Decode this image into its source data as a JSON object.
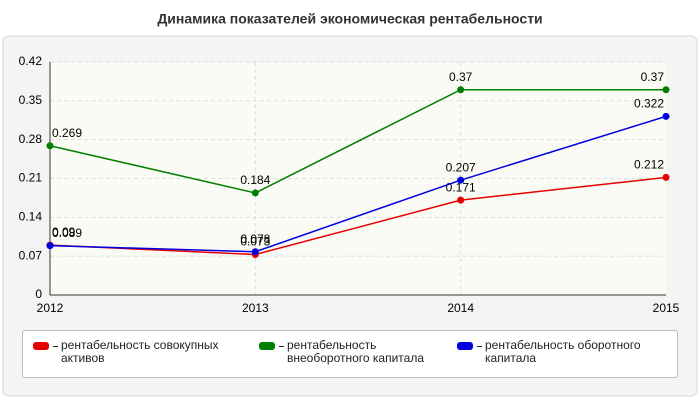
{
  "chart_data": {
    "type": "line",
    "title": "Динамика показателей экономическая рентабельности",
    "categories": [
      "2012",
      "2013",
      "2014",
      "2015"
    ],
    "series": [
      {
        "name": "рентабельность совокупных активов",
        "color": "#e60000",
        "values": [
          0.09,
          0.073,
          0.171,
          0.212
        ]
      },
      {
        "name": "рентабельность внеоборотного капитала",
        "color": "#008000",
        "values": [
          0.269,
          0.184,
          0.37,
          0.37
        ]
      },
      {
        "name": "рентабельность оборотного капитала",
        "color": "#0000e0",
        "values": [
          0.089,
          0.078,
          0.207,
          0.322
        ]
      }
    ],
    "ylim": [
      0,
      0.42
    ],
    "yticks": [
      0,
      0.07,
      0.14,
      0.21,
      0.28,
      0.35,
      0.42
    ],
    "grid": true
  }
}
